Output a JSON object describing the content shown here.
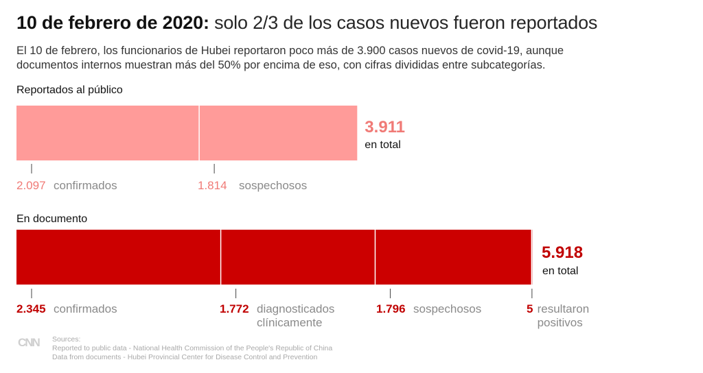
{
  "header": {
    "title_bold": "10 de febrero de 2020:",
    "title_rest": "solo 2/3 de los casos nuevos fueron reportados",
    "subtitle_line1": "El 10 de febrero, los funcionarios de Hubei reportaron poco más de 3.900 casos nuevos de covid-19, aunque",
    "subtitle_line2": "documentos internos muestran más del 50% por encima de eso, con cifras divididas entre subcategorías."
  },
  "colors": {
    "reported": "#ff9b99",
    "reported_text": "#f07a76",
    "document": "#cc0000",
    "document_text": "#c00000",
    "category_text": "#8a8a8a"
  },
  "chart_data": {
    "type": "bar",
    "orientation": "horizontal-stacked",
    "title": "10 de febrero de 2020: solo 2/3 de los casos nuevos fueron reportados",
    "xlim": [
      0,
      5918
    ],
    "series": [
      {
        "name": "Reportados al público",
        "total": 3911,
        "total_label": "3.911",
        "total_caption": "en total",
        "segments": [
          {
            "category": "confirmados",
            "value": 2097,
            "value_label": "2.097"
          },
          {
            "category": "sospechosos",
            "value": 1814,
            "value_label": "1.814"
          }
        ]
      },
      {
        "name": "En documento",
        "total": 5918,
        "total_label": "5.918",
        "total_caption": "en total",
        "segments": [
          {
            "category": "confirmados",
            "value": 2345,
            "value_label": "2.345"
          },
          {
            "category": "diagnosticados clínicamente",
            "category_lines": [
              "diagnosticados",
              "clínicamente"
            ],
            "value": 1772,
            "value_label": "1.772"
          },
          {
            "category": "sospechosos",
            "value": 1796,
            "value_label": "1.796"
          },
          {
            "category": "resultaron positivos",
            "category_lines": [
              "resultaron",
              "positivos"
            ],
            "value": 5,
            "value_label": "5"
          }
        ]
      }
    ]
  },
  "footer": {
    "logo": "CNN",
    "sources_heading": "Sources:",
    "source_1": "Reported to public data - National Health Commission of the People's Republic of China",
    "source_2": "Data from documents - Hubei Provincial Center for Disease Control and Prevention"
  }
}
